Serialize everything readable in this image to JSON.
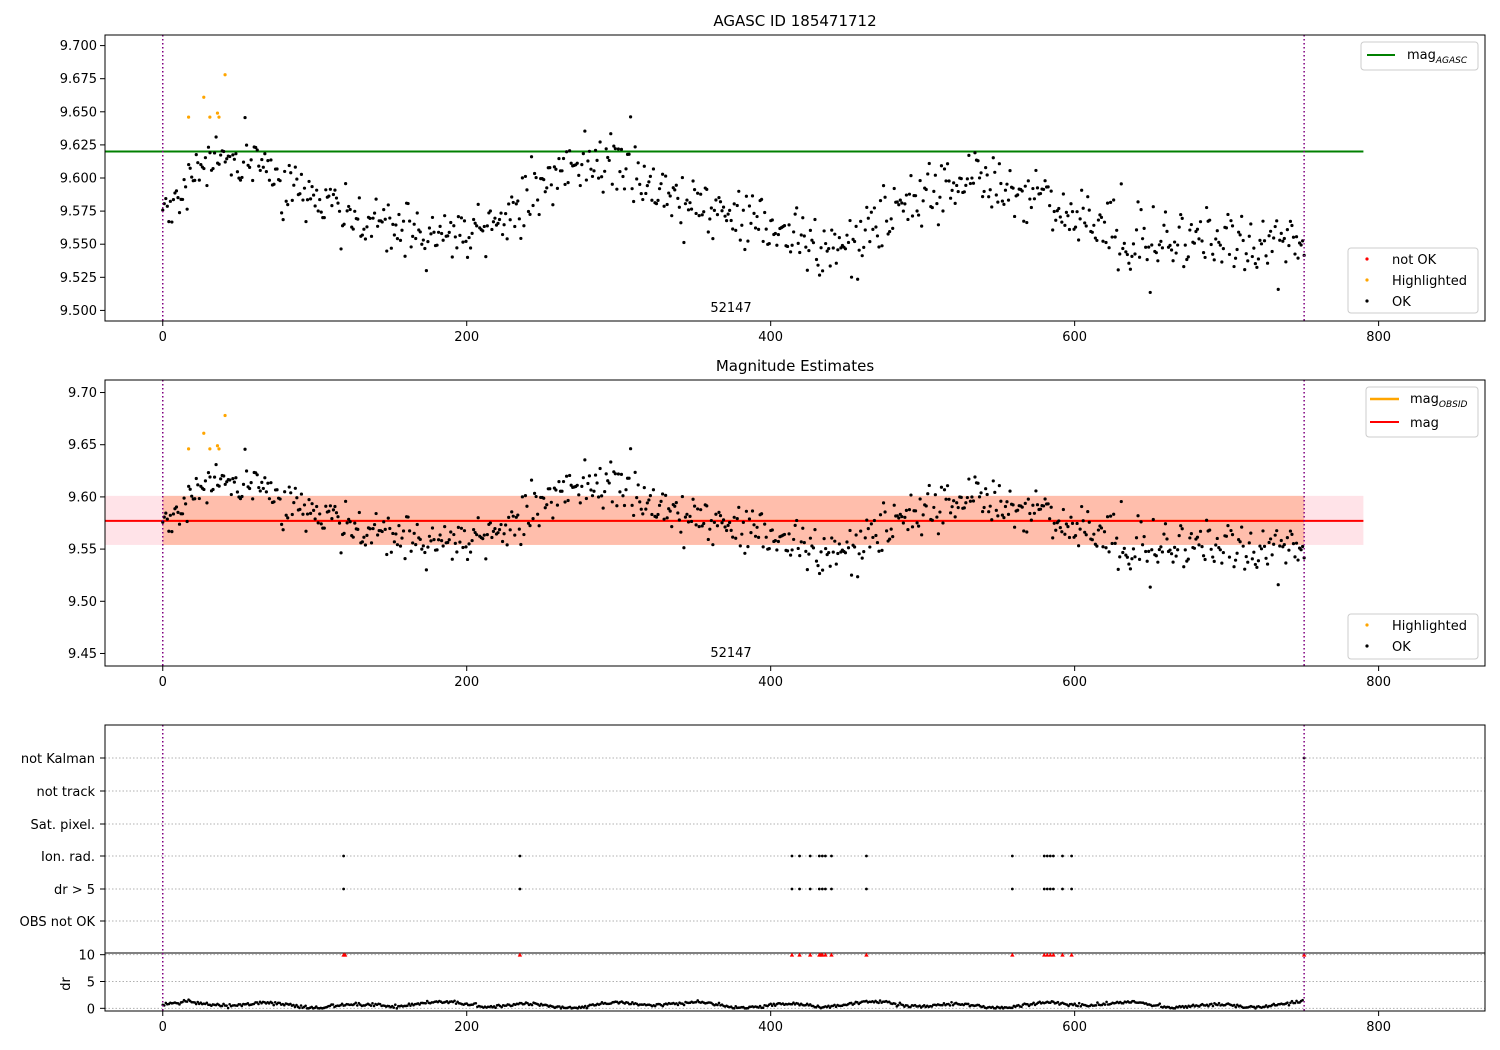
{
  "chart_data": [
    {
      "type": "scatter",
      "title": "AGASC ID 185471712",
      "obs_label": "52147",
      "xlim": [
        -38,
        870
      ],
      "ylim": [
        9.492,
        9.708
      ],
      "xticks": [
        0,
        200,
        400,
        600,
        800
      ],
      "yticks": [
        9.5,
        9.525,
        9.55,
        9.575,
        9.6,
        9.625,
        9.65,
        9.675,
        9.7
      ],
      "ytick_decimals": 3,
      "obs_boundaries": [
        0,
        751
      ],
      "reference_lines": [
        {
          "name": "mag",
          "subscript": "AGASC",
          "value": 9.62,
          "x_range": [
            -38,
            790
          ],
          "color": "#008000"
        }
      ],
      "legend_lines_placement": "top-right",
      "legend_points_placement": "bottom-right",
      "legend_points": [
        "not OK",
        "Highlighted",
        "OK"
      ],
      "series": [
        {
          "name": "Highlighted",
          "color": "#ffa500",
          "points": [
            [
              17,
              9.646
            ],
            [
              27,
              9.661
            ],
            [
              31,
              9.646
            ],
            [
              36,
              9.649
            ],
            [
              37,
              9.646
            ],
            [
              41,
              9.678
            ]
          ]
        },
        {
          "name": "OK",
          "color": "#000000",
          "generated_points": 750,
          "x_range": [
            0,
            751
          ]
        }
      ]
    },
    {
      "type": "scatter",
      "title": "Magnitude Estimates",
      "obs_label": "52147",
      "xlim": [
        -38,
        870
      ],
      "ylim": [
        9.438,
        9.712
      ],
      "xticks": [
        0,
        200,
        400,
        600,
        800
      ],
      "yticks": [
        9.45,
        9.5,
        9.55,
        9.6,
        9.65,
        9.7
      ],
      "ytick_decimals": 2,
      "obs_boundaries": [
        0,
        751
      ],
      "reference_lines": [
        {
          "name": "mag",
          "subscript": "OBSID",
          "value": 9.577,
          "x_range": [
            0,
            751
          ],
          "color": "#ffa500"
        },
        {
          "name": "mag",
          "subscript": "",
          "value": 9.577,
          "x_range": [
            -38,
            790
          ],
          "color": "#ff0000"
        }
      ],
      "bands": [
        {
          "color": "#ffc0cb",
          "y_range": [
            9.554,
            9.601
          ],
          "x_range": [
            -38,
            790
          ]
        },
        {
          "color": "#ffa07a",
          "y_range": [
            9.554,
            9.601
          ],
          "x_range": [
            0,
            751
          ]
        }
      ],
      "legend_lines_placement": "top-right",
      "legend_points_placement": "bottom-right",
      "legend_points": [
        "Highlighted",
        "OK"
      ],
      "series": [
        {
          "name": "Highlighted",
          "color": "#ffa500",
          "points": [
            [
              17,
              9.646
            ],
            [
              27,
              9.661
            ],
            [
              31,
              9.646
            ],
            [
              36,
              9.649
            ],
            [
              37,
              9.646
            ],
            [
              41,
              9.678
            ]
          ]
        },
        {
          "name": "OK",
          "color": "#000000",
          "generated_points": 750,
          "x_range": [
            0,
            751
          ]
        }
      ]
    },
    {
      "type": "scatter",
      "title": "",
      "xlim": [
        -38,
        870
      ],
      "xticks": [
        0,
        200,
        400,
        600,
        800
      ],
      "flag_categories": [
        "not Kalman",
        "not track",
        "Sat. pixel.",
        "Ion. rad.",
        "dr > 5",
        "OBS not OK"
      ],
      "flag_points": {
        "Ion. rad.": [
          119,
          235,
          414,
          419,
          426,
          432,
          434,
          436,
          440,
          463,
          559,
          580,
          582,
          584,
          586,
          592,
          598
        ],
        "dr > 5": [
          119,
          235,
          414,
          419,
          426,
          432,
          434,
          436,
          440,
          463,
          559,
          580,
          582,
          584,
          586,
          592,
          598
        ],
        "not Kalman": [
          751
        ]
      },
      "dr_panel": {
        "ylabel": "dr",
        "ylim": [
          -0.5,
          10.5
        ],
        "yticks": [
          0,
          5,
          10
        ],
        "threshold_line": 10,
        "outlier_markers_at": 10,
        "outlier_color": "#ff0000",
        "outlier_x": [
          119,
          120,
          235,
          414,
          419,
          426,
          432,
          433,
          434,
          436,
          440,
          463,
          559,
          580,
          582,
          584,
          586,
          592,
          598,
          751
        ]
      }
    }
  ]
}
